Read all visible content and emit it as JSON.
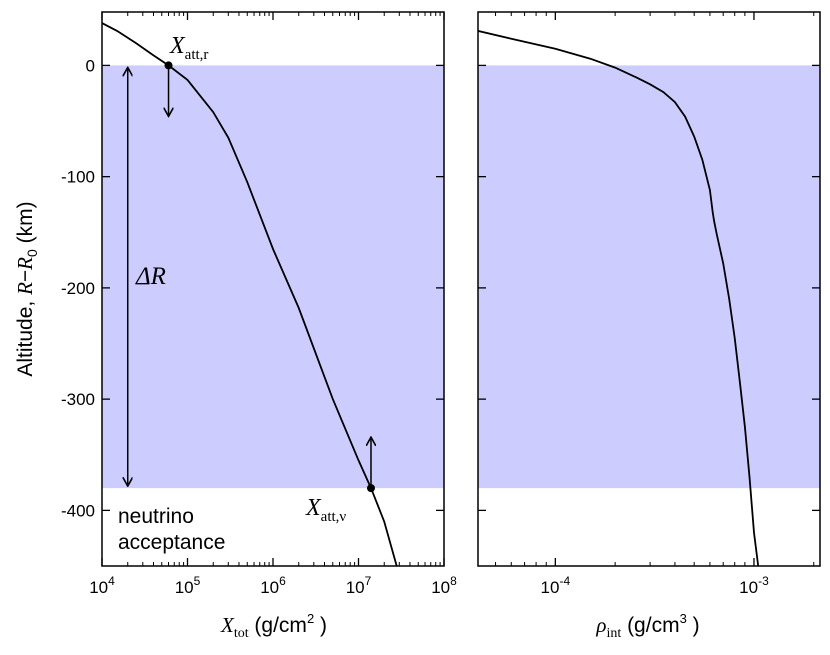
{
  "chart_data": [
    {
      "type": "line",
      "xlabel": "X_tot (g/cm²)",
      "ylabel": "Altitude, R − R₀ (km)",
      "x_scale": "log",
      "xlim": [
        10000,
        100000000
      ],
      "ylim": [
        -450,
        48
      ],
      "x_ticks": [
        {
          "value": 10000,
          "base": "10",
          "exp": "4"
        },
        {
          "value": 100000,
          "base": "10",
          "exp": "5"
        },
        {
          "value": 1000000,
          "base": "10",
          "exp": "6"
        },
        {
          "value": 10000000,
          "base": "10",
          "exp": "7"
        },
        {
          "value": 100000000,
          "base": "10",
          "exp": "8"
        }
      ],
      "y_ticks": [
        0,
        -100,
        -200,
        -300,
        -400
      ],
      "y_tick_labels": [
        "0",
        "-100",
        "-200",
        "-300",
        "-400"
      ],
      "shaded_band": {
        "y_from": -380,
        "y_to": 0,
        "color": "#ccccff"
      },
      "series": [
        {
          "color": "#000000",
          "x": [
            10000,
            15000,
            25000,
            40000,
            60000,
            100000,
            200000,
            300000,
            500000,
            1000000,
            2000000,
            5000000,
            10000000,
            14000000,
            20000000,
            28000000
          ],
          "y": [
            38,
            31,
            20,
            9,
            0,
            -13,
            -42,
            -65,
            -105,
            -165,
            -218,
            -300,
            -355,
            -380,
            -410,
            -450
          ]
        }
      ],
      "annotations": [
        {
          "id": "x_att_r",
          "x": 60000,
          "y": 0,
          "arrow": "down"
        },
        {
          "id": "x_att_nu",
          "x": 14000000,
          "y": -380,
          "arrow": "up"
        },
        {
          "id": "delta_r",
          "x": 20000,
          "y_from": 0,
          "y_to": -380
        }
      ],
      "grid": false,
      "legend": "none"
    },
    {
      "type": "line",
      "xlabel": "ρ_int (g/cm³)",
      "x_scale": "log",
      "xlim": [
        4.08e-05,
        0.00215
      ],
      "ylim": [
        -450,
        48
      ],
      "x_ticks": [
        {
          "value": 0.0001,
          "base": "10",
          "exp": "-4"
        },
        {
          "value": 0.001,
          "base": "10",
          "exp": "-3"
        }
      ],
      "y_ticks": [
        0,
        -100,
        -200,
        -300,
        -400
      ],
      "shaded_band": {
        "y_from": -380,
        "y_to": 0,
        "color": "#ccccff"
      },
      "series": [
        {
          "color": "#000000",
          "x": [
            4.08e-05,
            6e-05,
            0.0001,
            0.00015,
            0.0002,
            0.00025,
            0.0003,
            0.00035,
            0.0004,
            0.00045,
            0.0005,
            0.00055,
            0.0006,
            0.00062,
            0.00063,
            0.00065,
            0.0007,
            0.00075,
            0.0008,
            0.00085,
            0.0009,
            0.00095,
            0.001,
            0.00105
          ],
          "y": [
            31,
            24,
            15,
            6,
            -2,
            -10,
            -17,
            -24,
            -33,
            -46,
            -64,
            -85,
            -112,
            -132,
            -140,
            -152,
            -178,
            -210,
            -245,
            -285,
            -325,
            -370,
            -420,
            -450
          ]
        }
      ],
      "grid": false,
      "legend": "none"
    }
  ],
  "labels": {
    "neutrino_line1": "neutrino",
    "neutrino_line2": "acceptance",
    "y_title_text": "Altitude, ",
    "y_title_R": "R",
    "y_title_minus": "−",
    "y_title_R0": "R",
    "y_title_R0_sub": "0",
    "y_title_unit": " (km)",
    "x1_symbol": "X",
    "x1_sub": "tot",
    "x1_unit_a": " (g/cm",
    "x1_unit_sup": "2",
    "x1_unit_b": " )",
    "x2_symbol": "ρ",
    "x2_sub": "int",
    "x2_unit_a": " (g/cm",
    "x2_unit_sup": "3",
    "x2_unit_b": " )",
    "ann_r_symbol": "X",
    "ann_r_sub": "att,r",
    "ann_nu_symbol": "X",
    "ann_nu_sub": "att,ν",
    "delta_symbol": "ΔR"
  }
}
